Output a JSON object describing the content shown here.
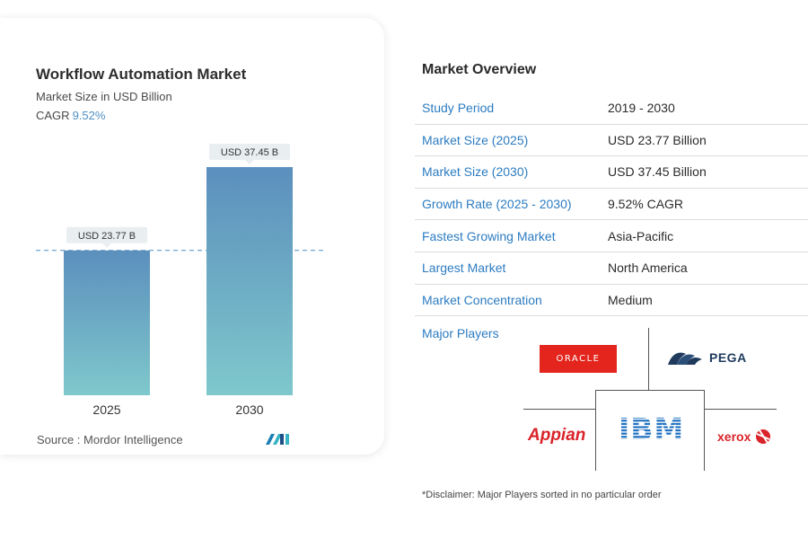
{
  "chart_data": {
    "type": "bar",
    "title": "Workflow Automation Market",
    "subtitle": "Market Size in USD Billion",
    "cagr_label": "CAGR",
    "cagr_value": "9.52%",
    "categories": [
      "2025",
      "2030"
    ],
    "values": [
      23.77,
      37.45
    ],
    "data_labels": [
      "USD 23.77 B",
      "USD 37.45 B"
    ],
    "ylim": [
      0,
      40
    ],
    "xlabel": "",
    "ylabel": "",
    "reference_line": 23.77,
    "grid": false,
    "colors": {
      "bar_top": "#5b8fbd",
      "bar_bottom": "#7fc8cc",
      "reference_line": "#4f8fc3"
    }
  },
  "source": "Source :  Mordor Intelligence",
  "overview": {
    "title": "Market Overview",
    "rows": [
      {
        "key": "Study Period",
        "value": "2019 - 2030"
      },
      {
        "key": "Market Size (2025)",
        "value": "USD 23.77 Billion"
      },
      {
        "key": "Market Size (2030)",
        "value": "USD 37.45 Billion"
      },
      {
        "key": "Growth Rate (2025 - 2030)",
        "value": "9.52% CAGR"
      },
      {
        "key": "Fastest Growing Market",
        "value": "Asia-Pacific"
      },
      {
        "key": "Largest Market",
        "value": "North America"
      },
      {
        "key": "Market Concentration",
        "value": "Medium"
      }
    ],
    "players_label": "Major Players",
    "players": {
      "oracle": "ORACLE",
      "pega": "PEGA",
      "ibm": "IBM",
      "appian": "Appian",
      "xerox": "xerox"
    }
  },
  "disclaimer": "*Disclaimer: Major Players sorted in no particular order",
  "colors": {
    "accent": "#2c7cc1",
    "oracle_red": "#e3251e",
    "appian_red": "#d8242a",
    "pega_navy": "#1f3a5c",
    "ibm_blue": "#1f70c1"
  }
}
